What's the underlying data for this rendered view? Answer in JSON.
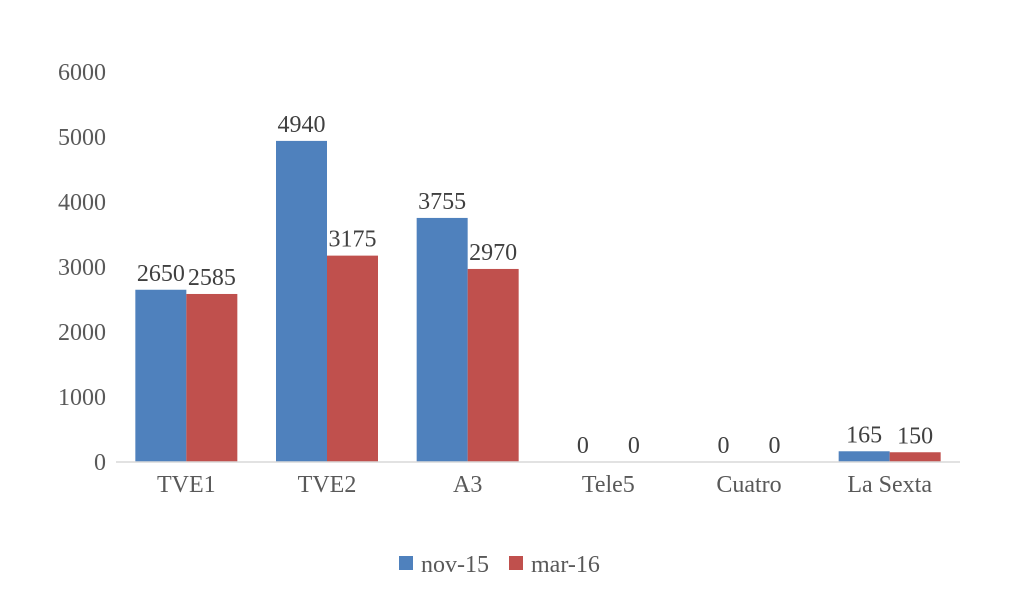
{
  "chart_data": {
    "type": "bar",
    "categories": [
      "TVE1",
      "TVE2",
      "A3",
      "Tele5",
      "Cuatro",
      "La Sexta"
    ],
    "series": [
      {
        "name": "nov-15",
        "values": [
          2650,
          4940,
          3755,
          0,
          0,
          165
        ],
        "color": "#4f81bd"
      },
      {
        "name": "mar-16",
        "values": [
          2585,
          3175,
          2970,
          0,
          0,
          150
        ],
        "color": "#c0504d"
      }
    ],
    "yticks": [
      "0",
      "1000",
      "2000",
      "3000",
      "4000",
      "5000",
      "6000"
    ],
    "ylim": [
      0,
      6000
    ],
    "grid": false,
    "legend_position": "bottom",
    "title": "",
    "xlabel": "",
    "ylabel": ""
  }
}
